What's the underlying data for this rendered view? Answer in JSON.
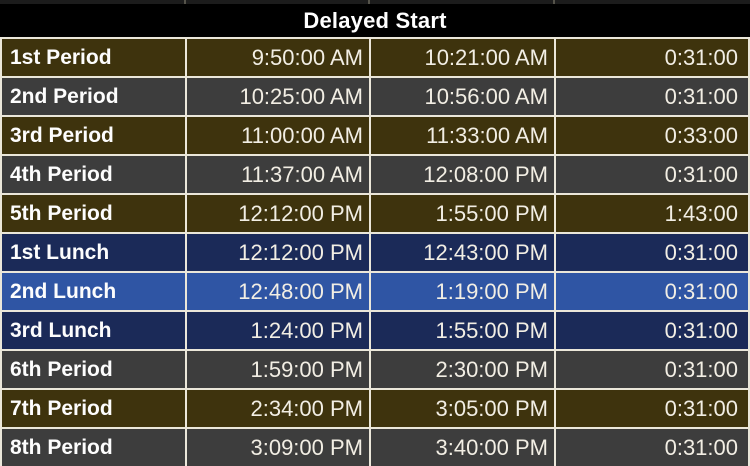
{
  "header": {
    "title": "Delayed Start"
  },
  "columns": [
    "period",
    "start_time",
    "end_time",
    "duration"
  ],
  "rows": [
    {
      "label": "1st Period",
      "start": "9:50:00 AM",
      "end": "10:21:00 AM",
      "duration": "0:31:00",
      "variant": "olive"
    },
    {
      "label": "2nd Period",
      "start": "10:25:00 AM",
      "end": "10:56:00 AM",
      "duration": "0:31:00",
      "variant": "gray"
    },
    {
      "label": "3rd Period",
      "start": "11:00:00 AM",
      "end": "11:33:00 AM",
      "duration": "0:33:00",
      "variant": "olive"
    },
    {
      "label": "4th Period",
      "start": "11:37:00 AM",
      "end": "12:08:00 PM",
      "duration": "0:31:00",
      "variant": "gray"
    },
    {
      "label": "5th Period",
      "start": "12:12:00 PM",
      "end": "1:55:00 PM",
      "duration": "1:43:00",
      "variant": "olive"
    },
    {
      "label": "1st Lunch",
      "start": "12:12:00 PM",
      "end": "12:43:00 PM",
      "duration": "0:31:00",
      "variant": "navy"
    },
    {
      "label": "2nd Lunch",
      "start": "12:48:00 PM",
      "end": "1:19:00 PM",
      "duration": "0:31:00",
      "variant": "blue"
    },
    {
      "label": "3rd Lunch",
      "start": "1:24:00 PM",
      "end": "1:55:00 PM",
      "duration": "0:31:00",
      "variant": "navy"
    },
    {
      "label": "6th Period",
      "start": "1:59:00 PM",
      "end": "2:30:00 PM",
      "duration": "0:31:00",
      "variant": "gray"
    },
    {
      "label": "7th Period",
      "start": "2:34:00 PM",
      "end": "3:05:00 PM",
      "duration": "0:31:00",
      "variant": "olive"
    },
    {
      "label": "8th Period",
      "start": "3:09:00 PM",
      "end": "3:40:00 PM",
      "duration": "0:31:00",
      "variant": "gray"
    }
  ],
  "colors": {
    "olive": "#3e330d",
    "gray": "#3d3d3d",
    "navy": "#1b2a58",
    "blue": "#2f55a4",
    "border": "#ebe7da",
    "header_bg": "#000000",
    "header_text": "#ffffff"
  }
}
